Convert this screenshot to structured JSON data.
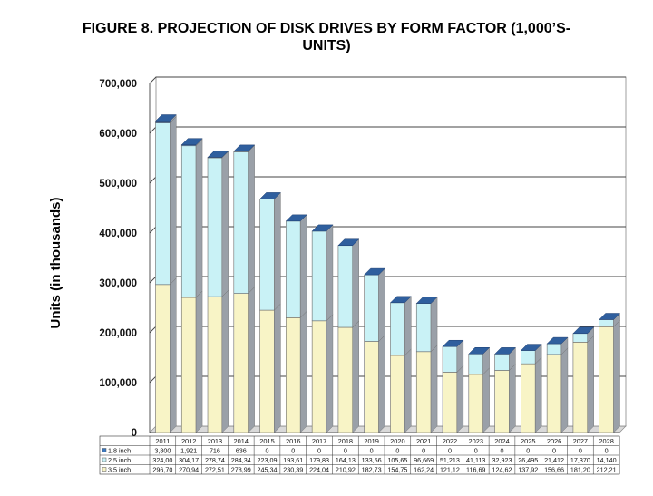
{
  "figure": {
    "title_line1": "FIGURE 8.  PROJECTION OF DISK DRIVES BY FORM FACTOR (1,000’S-",
    "title_line2": "UNITS)"
  },
  "chart_data": {
    "type": "bar",
    "stacked": true,
    "three_d": true,
    "title": "FIGURE 8.  PROJECTION OF DISK DRIVES BY FORM FACTOR (1,000’S-UNITS)",
    "xlabel": "",
    "ylabel": "Units (in thousands)",
    "ylim": [
      0,
      700000
    ],
    "yticks": [
      "0",
      "100,000",
      "200,000",
      "300,000",
      "400,000",
      "500,000",
      "600,000",
      "700,000"
    ],
    "grid": true,
    "legend": "data-table-left",
    "categories": [
      "2011",
      "2012",
      "2013",
      "2014",
      "2015",
      "2016",
      "2017",
      "2018",
      "2019",
      "2020",
      "2021",
      "2022",
      "2023",
      "2024",
      "2025",
      "2026",
      "2027",
      "2028"
    ],
    "series": [
      {
        "name": "3.5 inch",
        "color": "#f8f4c6",
        "values": [
          296700,
          270900,
          272500,
          278900,
          245300,
          230300,
          224000,
          210900,
          182700,
          154700,
          162200,
          121100,
          116600,
          124600,
          137900,
          156600,
          181200,
          212200
        ],
        "labels": [
          "296,70",
          "270,94",
          "272,51",
          "278,99",
          "245,34",
          "230,39",
          "224,04",
          "210,92",
          "182,73",
          "154,75",
          "162,24",
          "121,12",
          "116,69",
          "124,62",
          "137,92",
          "156,66",
          "181,20",
          "212,21"
        ]
      },
      {
        "name": "2.5 inch",
        "color": "#c9f2f6",
        "values": [
          324000,
          304100,
          278700,
          284300,
          223000,
          193600,
          179800,
          164100,
          133500,
          105600,
          96669,
          51213,
          41113,
          32923,
          26495,
          21412,
          17370,
          14140
        ],
        "labels": [
          "324,00",
          "304,17",
          "278,74",
          "284,34",
          "223,09",
          "193,61",
          "179,83",
          "164,13",
          "133,56",
          "105,65",
          "96,669",
          "51,213",
          "41,113",
          "32,923",
          "26,495",
          "21,412",
          "17,370",
          "14,140"
        ]
      },
      {
        "name": "1.8 inch",
        "color": "#3a78c0",
        "values": [
          3800,
          1921,
          716,
          636,
          0,
          0,
          0,
          0,
          0,
          0,
          0,
          0,
          0,
          0,
          0,
          0,
          0,
          0
        ],
        "labels": [
          "3,800",
          "1,921",
          "716",
          "636",
          "0",
          "0",
          "0",
          "0",
          "0",
          "0",
          "0",
          "0",
          "0",
          "0",
          "0",
          "0",
          "0",
          "0"
        ]
      }
    ]
  }
}
